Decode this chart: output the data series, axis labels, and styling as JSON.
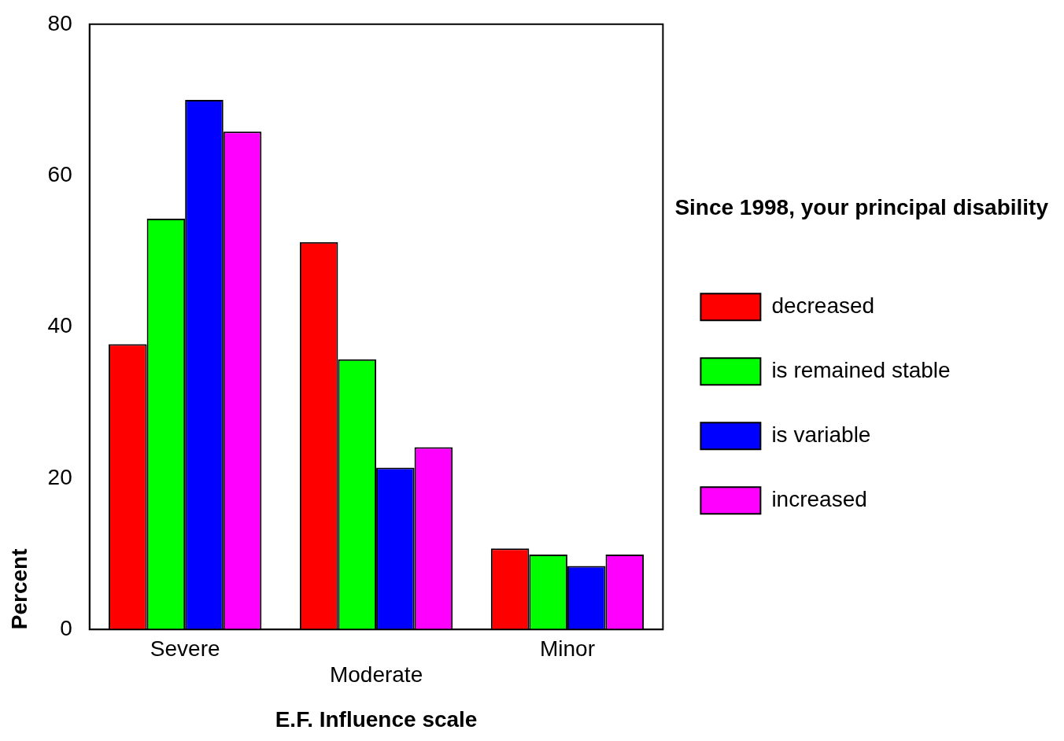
{
  "chart_data": {
    "type": "bar",
    "xlabel": "E.F. Influence scale",
    "ylabel": "Percent",
    "legend_title": "Since 1998, your principal disability",
    "categories": [
      "Severe",
      "Moderate",
      "Minor"
    ],
    "series": [
      {
        "name": "decreased",
        "color": "#ff0000",
        "values": [
          37.7,
          51.2,
          10.7
        ]
      },
      {
        "name": "is remained stable",
        "color": "#00ff00",
        "values": [
          54.3,
          35.7,
          9.9
        ]
      },
      {
        "name": "is variable",
        "color": "#0000ff",
        "values": [
          70.0,
          21.4,
          8.4
        ]
      },
      {
        "name": "increased",
        "color": "#ff00ff",
        "values": [
          65.8,
          24.1,
          9.9
        ]
      }
    ],
    "ylim": [
      0,
      80
    ],
    "yticks": [
      0,
      20,
      40,
      60,
      80
    ],
    "grid": false,
    "legend": "right"
  }
}
